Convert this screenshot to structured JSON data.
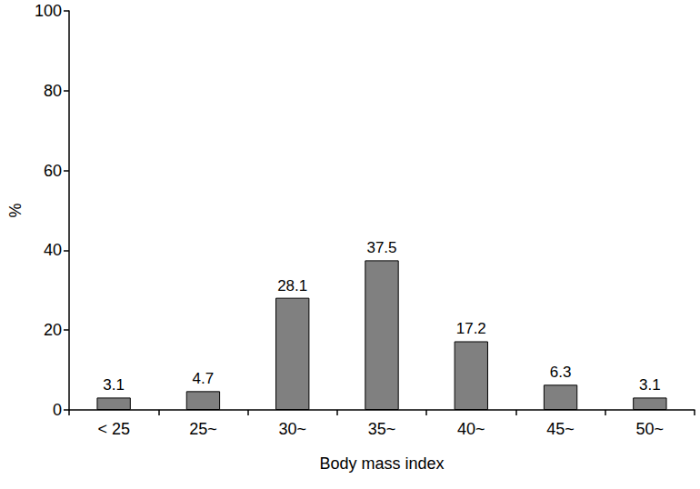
{
  "chart_data": {
    "type": "bar",
    "xlabel": "Body mass index",
    "ylabel": "%",
    "categories": [
      "< 25",
      "25~",
      "30~",
      "35~",
      "40~",
      "45~",
      "50~"
    ],
    "values": [
      3.1,
      4.7,
      28.1,
      37.5,
      17.2,
      6.3,
      3.1
    ],
    "color": "#808080",
    "ylim": [
      0,
      100
    ],
    "yticks": [
      0,
      20,
      40,
      60,
      80,
      100
    ],
    "grid": false,
    "data_labels": true
  }
}
